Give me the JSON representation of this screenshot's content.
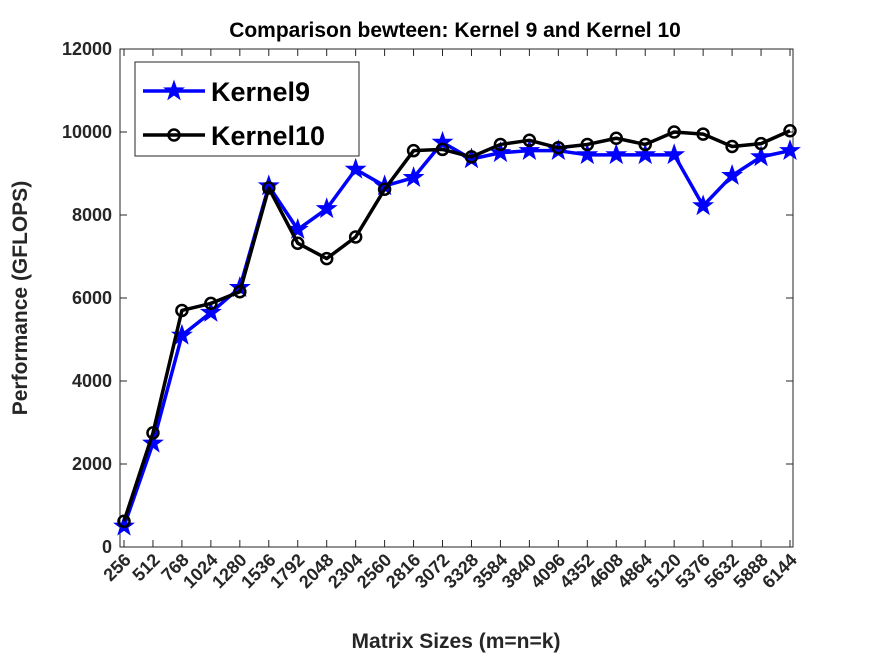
{
  "chart_data": {
    "type": "line",
    "title": "Comparison bewteen: Kernel 9 and Kernel 10",
    "xlabel": "Matrix Sizes (m=n=k)",
    "ylabel": "Performance (GFLOPS)",
    "ylim": [
      0,
      12000
    ],
    "yticks": [
      "0",
      "2000",
      "4000",
      "6000",
      "8000",
      "10000",
      "12000"
    ],
    "categories": [
      "256",
      "512",
      "768",
      "1024",
      "1280",
      "1536",
      "1792",
      "2048",
      "2304",
      "2560",
      "2816",
      "3072",
      "3328",
      "3584",
      "3840",
      "4096",
      "4352",
      "4608",
      "4864",
      "5120",
      "5376",
      "5632",
      "5888",
      "6144"
    ],
    "grid": false,
    "legend_position": "top-left",
    "series": [
      {
        "name": "Kernel9",
        "color": "#0000ff",
        "marker": "star",
        "values": [
          500,
          2500,
          5100,
          5650,
          6250,
          8700,
          7650,
          8150,
          9100,
          8700,
          8900,
          9750,
          9350,
          9500,
          9550,
          9550,
          9450,
          9450,
          9450,
          9450,
          8220,
          8950,
          9400,
          9550
        ]
      },
      {
        "name": "Kernel10",
        "color": "#000000",
        "marker": "circle",
        "values": [
          620,
          2750,
          5700,
          5870,
          6150,
          8650,
          7320,
          6950,
          7470,
          8620,
          9550,
          9580,
          9400,
          9700,
          9800,
          9620,
          9700,
          9850,
          9700,
          10000,
          9950,
          9650,
          9720,
          10030
        ]
      }
    ]
  }
}
